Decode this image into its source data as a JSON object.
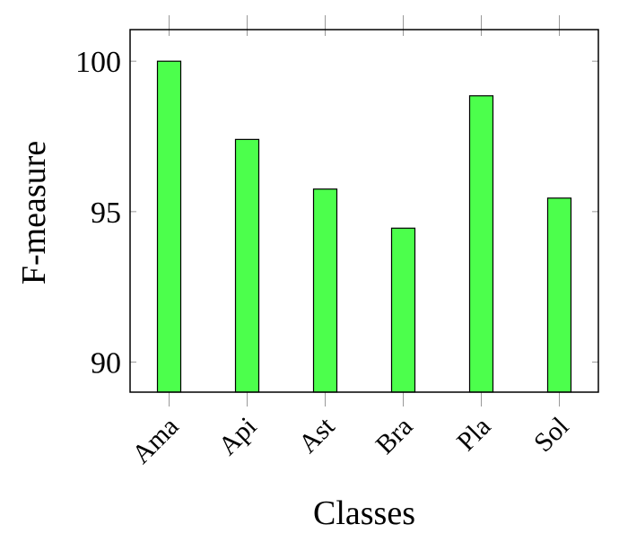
{
  "chart_data": {
    "type": "bar",
    "categories": [
      "Ama",
      "Api",
      "Ast",
      "Bra",
      "Pla",
      "Sol"
    ],
    "values": [
      100,
      97.4,
      95.75,
      94.45,
      98.85,
      95.45
    ],
    "color": "#4cff4c",
    "ylim": [
      89,
      101.05
    ],
    "yticks": [
      90,
      95,
      100
    ],
    "xlabel": "Classes",
    "ylabel": "F-measure"
  }
}
